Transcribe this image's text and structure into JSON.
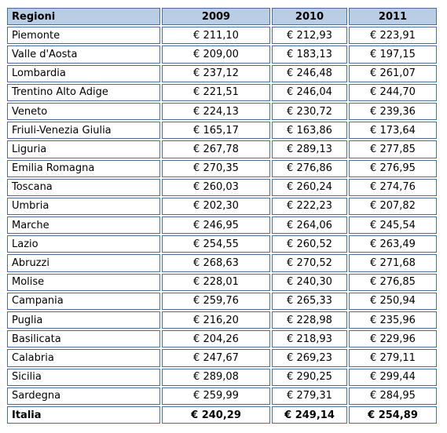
{
  "table": {
    "header": [
      "Regioni",
      "2009",
      "2010",
      "2011"
    ],
    "rows": [
      [
        "Piemonte",
        "€ 211,10",
        "€ 212,93",
        "€ 223,91"
      ],
      [
        "Valle d'Aosta",
        "€ 209,00",
        "€ 183,13",
        "€ 197,15"
      ],
      [
        "Lombardia",
        "€ 237,12",
        "€ 246,48",
        "€ 261,07"
      ],
      [
        "Trentino Alto Adige",
        "€ 221,51",
        "€ 246,04",
        "€ 244,70"
      ],
      [
        "Veneto",
        "€ 224,13",
        "€ 230,72",
        "€ 239,36"
      ],
      [
        "Friuli-Venezia Giulia",
        "€ 165,17",
        "€ 163,86",
        "€ 173,64"
      ],
      [
        "Liguria",
        "€ 267,78",
        "€ 289,13",
        "€ 277,85"
      ],
      [
        "Emilia Romagna",
        "€ 270,35",
        "€ 276,86",
        "€ 276,95"
      ],
      [
        "Toscana",
        "€ 260,03",
        "€ 260,24",
        "€ 274,76"
      ],
      [
        "Umbria",
        "€ 202,30",
        "€ 222,23",
        "€ 207,82"
      ],
      [
        "Marche",
        "€ 246,95",
        "€ 264,06",
        "€ 245,54"
      ],
      [
        "Lazio",
        "€ 254,55",
        "€ 260,52",
        "€ 263,49"
      ],
      [
        "Abruzzi",
        "€ 268,63",
        "€ 270,52",
        "€ 271,68"
      ],
      [
        "Molise",
        "€ 228,01",
        "€ 240,30",
        "€ 276,85"
      ],
      [
        "Campania",
        "€ 259,76",
        "€ 265,33",
        "€ 250,94"
      ],
      [
        "Puglia",
        "€ 216,20",
        "€ 228,98",
        "€ 235,96"
      ],
      [
        "Basilicata",
        "€ 204,26",
        "€ 218,93",
        "€ 229,96"
      ],
      [
        "Calabria",
        "€ 247,67",
        "€ 269,23",
        "€ 279,11"
      ],
      [
        "Sicilia",
        "€ 289,08",
        "€ 290,25",
        "€ 299,44"
      ],
      [
        "Sardegna",
        "€ 259,99",
        "€ 279,31",
        "€ 284,95"
      ]
    ],
    "total": [
      "Italia",
      "€ 240,29",
      "€ 249,14",
      "€ 254,89"
    ]
  }
}
